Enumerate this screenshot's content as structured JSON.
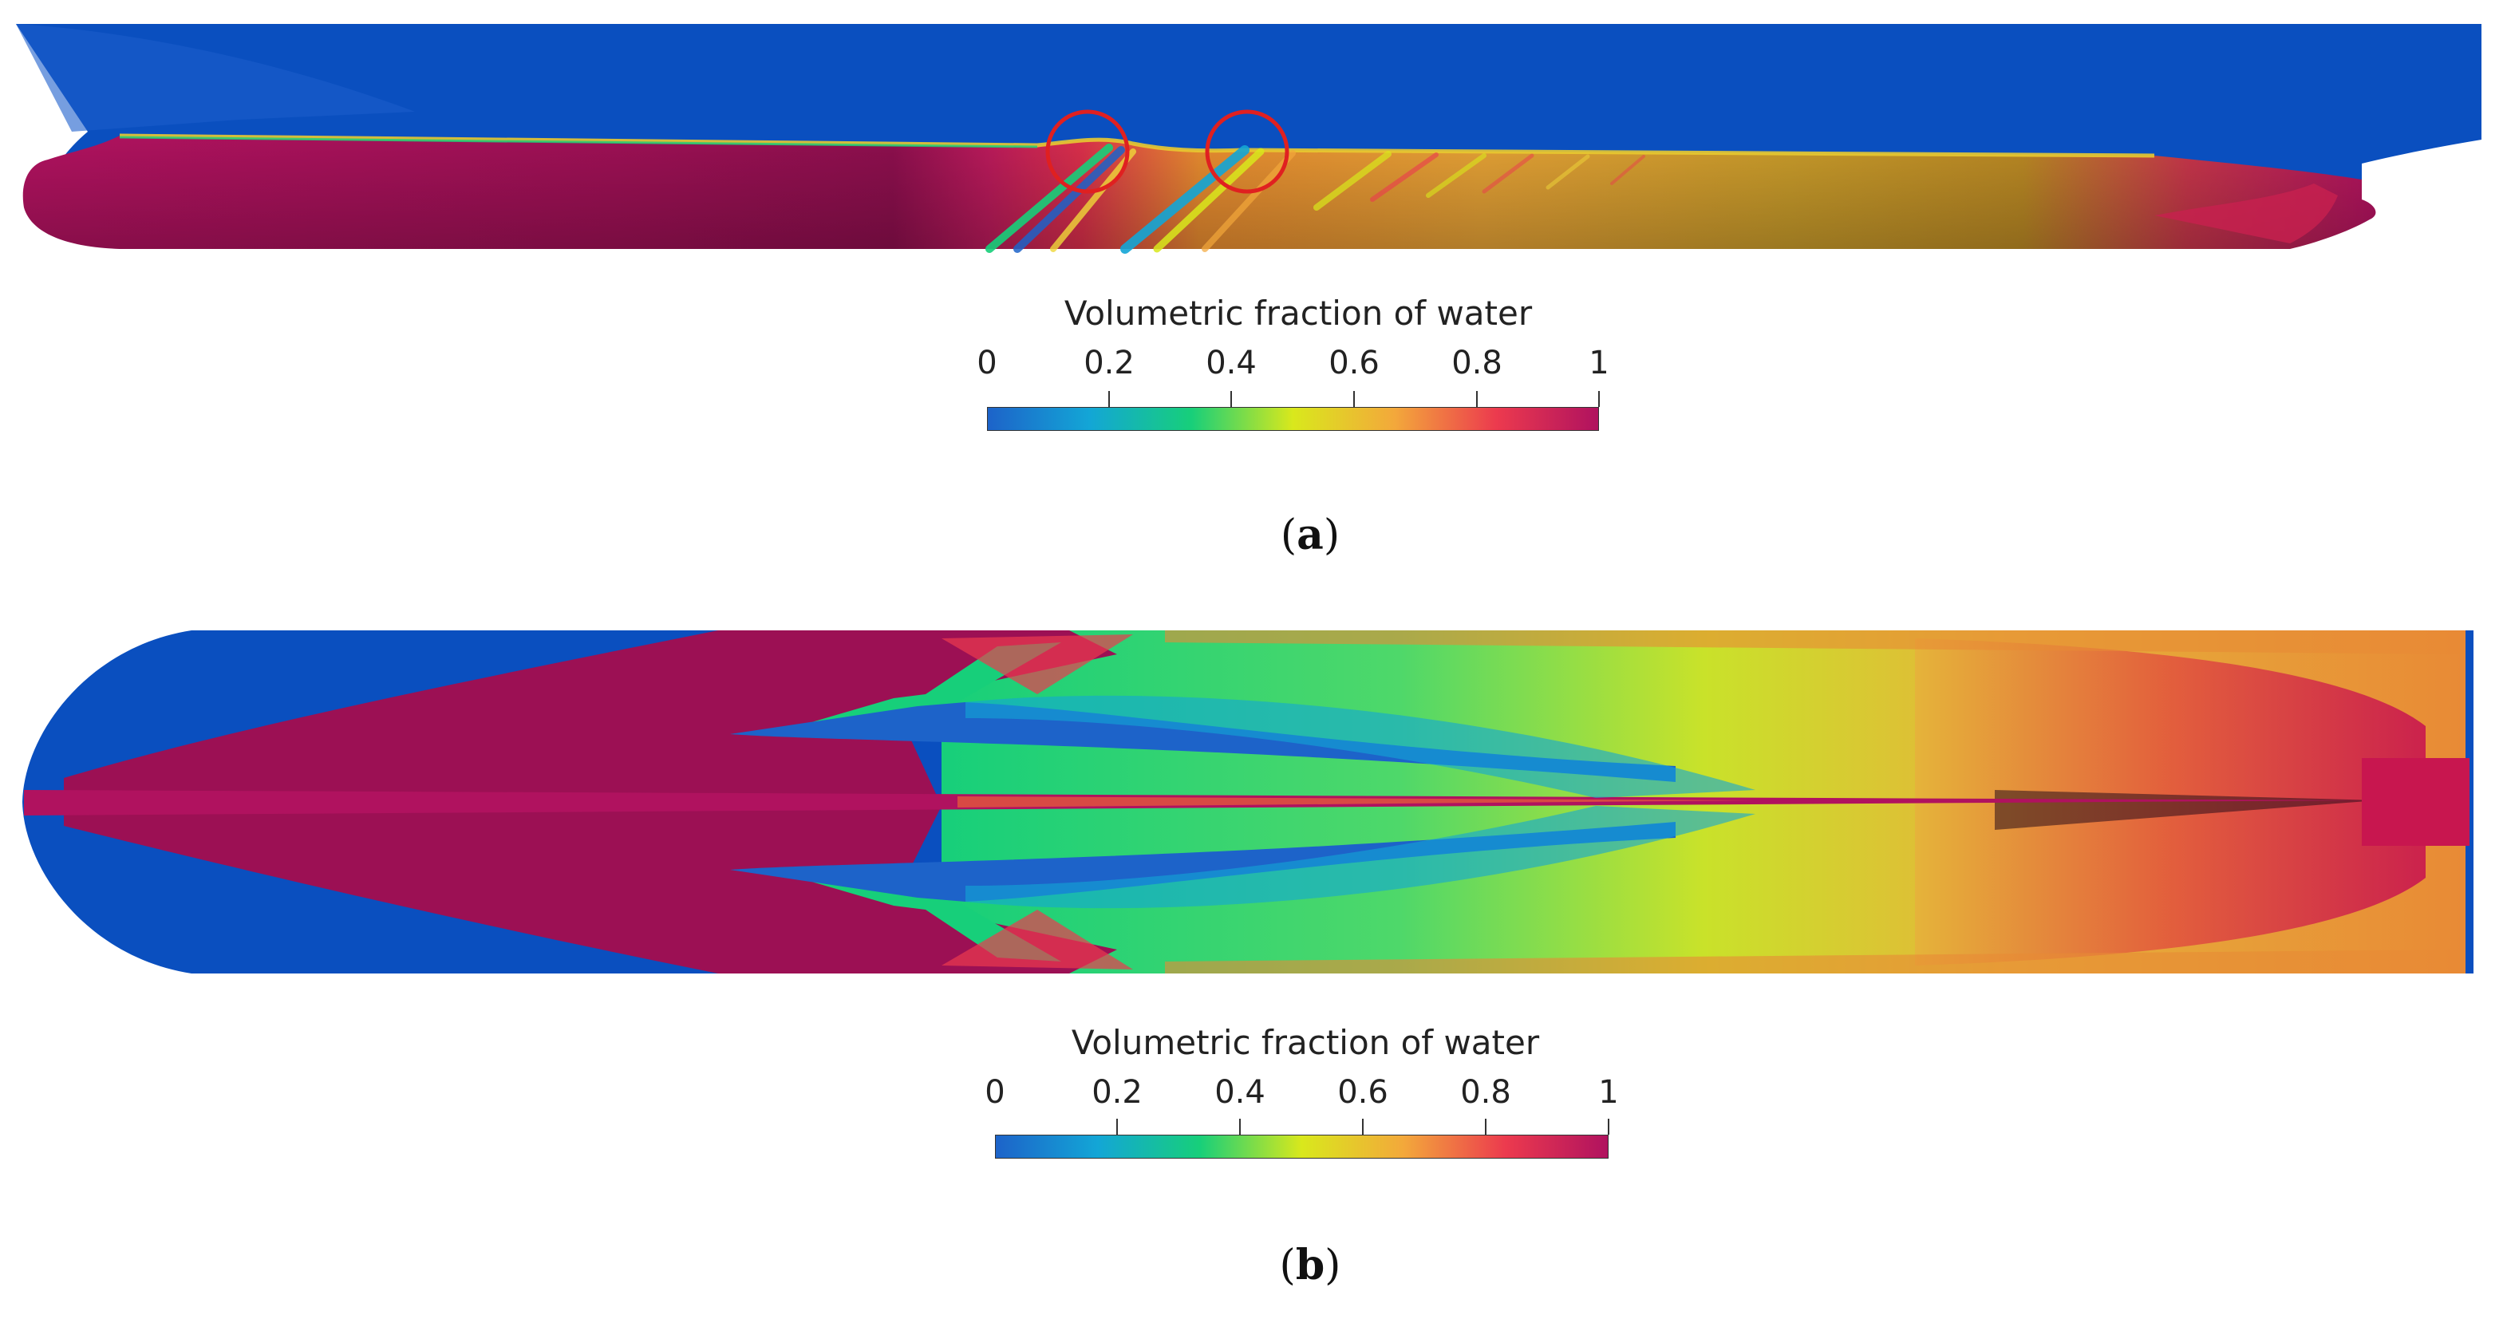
{
  "panels": [
    {
      "id": "a",
      "label_open": "(",
      "label_letter": "a",
      "label_close": ")",
      "colorbar": {
        "title": "Volumetric fraction of water",
        "ticks": [
          "0",
          "0.2",
          "0.4",
          "0.6",
          "0.8",
          "1"
        ]
      }
    },
    {
      "id": "b",
      "label_open": "(",
      "label_letter": "b",
      "label_close": ")",
      "colorbar": {
        "title": "Volumetric fraction of water",
        "ticks": [
          "0",
          "0.2",
          "0.4",
          "0.6",
          "0.8",
          "1"
        ]
      }
    }
  ],
  "colormap": [
    "#1d63c9",
    "#13a6d6",
    "#17cf7a",
    "#d9e81c",
    "#f3a83b",
    "#ec3a4e",
    "#b0125f"
  ],
  "highlight_circle_color": "#e02020"
}
